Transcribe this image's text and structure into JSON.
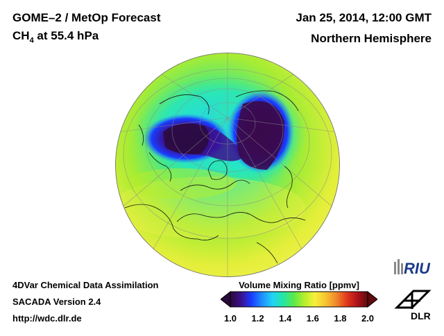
{
  "header": {
    "title": "GOME–2 / MetOp Forecast",
    "species_prefix": "CH",
    "species_sub": "4",
    "species_suffix": " at 55.4 hPa",
    "date": "Jan 25, 2014, 12:00 GMT",
    "region": "Northern Hemisphere"
  },
  "footer": {
    "line1": "4DVar Chemical Data Assimilation",
    "line2": "SACADA Version 2.4",
    "line3": "http://wdc.dlr.de"
  },
  "colorbar": {
    "title": "Volume Mixing Ratio [ppmv]",
    "ticks": [
      "1.0",
      "1.2",
      "1.4",
      "1.6",
      "1.8",
      "2.0"
    ],
    "range": [
      1.0,
      2.0
    ],
    "colors": [
      "#2a0a3a",
      "#3b0f8c",
      "#1a3cff",
      "#1e90ff",
      "#22d3f5",
      "#26e6a6",
      "#5bea4a",
      "#b6ee2c",
      "#f4f13a",
      "#f7c531",
      "#f18a2c",
      "#e23a1e",
      "#b0121a",
      "#5e0a0e"
    ]
  },
  "logos": {
    "riu": "RIU",
    "dlr": "DLR"
  },
  "icons": {
    "globe": "northern-hemisphere-globe-icon",
    "dlr": "dlr-logo-icon",
    "riu": "riu-logo-icon"
  }
}
